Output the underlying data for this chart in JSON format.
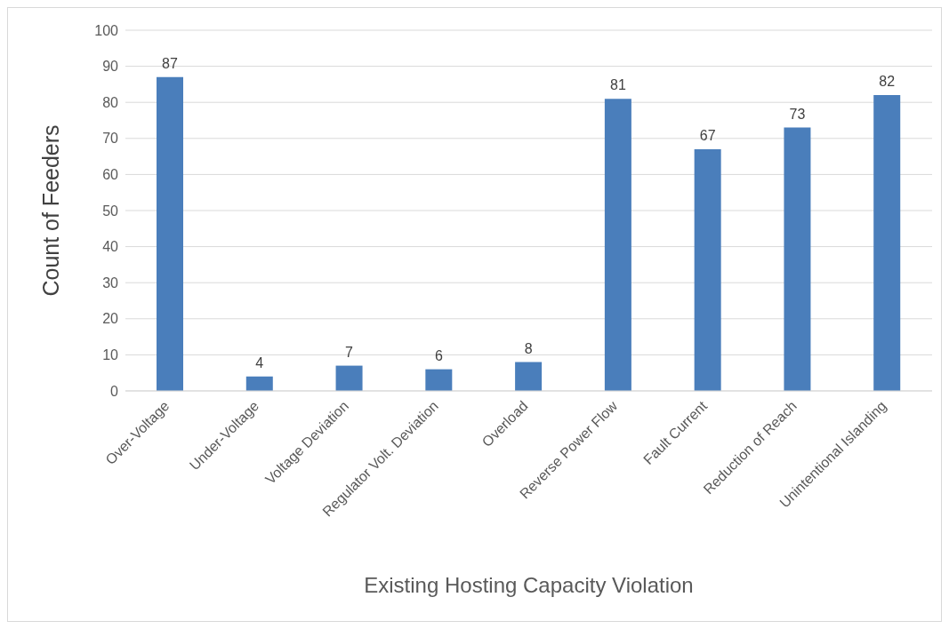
{
  "chart_data": {
    "type": "bar",
    "xlabel": "Existing Hosting Capacity Violation",
    "ylabel": "Count of Feeders",
    "categories": [
      "Over-Voltage",
      "Under-Voltage",
      "Voltage Deviation",
      "Regulator Volt. Deviation",
      "Overload",
      "Reverse Power Flow",
      "Fault Current",
      "Reduction of Reach",
      "Unintentional Islanding"
    ],
    "values": [
      87,
      4,
      7,
      6,
      8,
      81,
      67,
      73,
      82
    ],
    "color": "#4a7ebb",
    "ylim": [
      0,
      100
    ],
    "yticks": [
      0,
      10,
      20,
      30,
      40,
      50,
      60,
      70,
      80,
      90,
      100
    ],
    "grid": "y",
    "data_labels": true,
    "legend": false
  }
}
